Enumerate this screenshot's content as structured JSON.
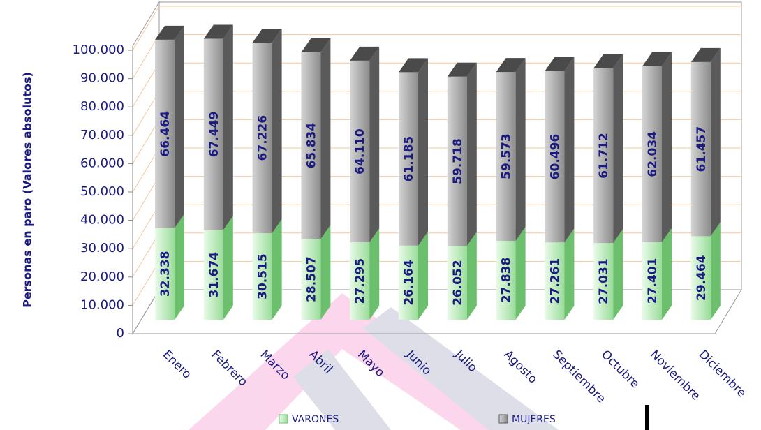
{
  "chart_data": {
    "type": "bar3d_stacked",
    "ylabel": "Personas en paro (Valores absolutos)",
    "categories": [
      "Enero",
      "Febrero",
      "Marzo",
      "Abril",
      "Mayo",
      "Junio",
      "Julio",
      "Agosto",
      "Septiembre",
      "Octubre",
      "Noviembre",
      "Diciembre"
    ],
    "series": [
      {
        "name": "VARONES",
        "color": "#b8ecb8",
        "values": [
          32338,
          31674,
          30515,
          28507,
          27295,
          26164,
          26052,
          27838,
          27261,
          27031,
          27401,
          29464
        ],
        "value_labels": [
          "32.338",
          "31.674",
          "30.515",
          "28.507",
          "27.295",
          "26.164",
          "26.052",
          "27.838",
          "27.261",
          "27.031",
          "27.401",
          "29.464"
        ]
      },
      {
        "name": "MUJERES",
        "color": "#a8a8a8",
        "values": [
          66464,
          67449,
          67226,
          65834,
          64110,
          61185,
          59718,
          59573,
          60496,
          61712,
          62034,
          61457
        ],
        "value_labels": [
          "66.464",
          "67.449",
          "67.226",
          "65.834",
          "64.110",
          "61.185",
          "59.718",
          "59.573",
          "60.496",
          "61.712",
          "62.034",
          "61.457"
        ]
      }
    ],
    "ylim": [
      0,
      100000
    ],
    "yticks": [
      0,
      {
        "value": 10000,
        "label": "10.000"
      },
      {
        "value": 20000,
        "label": "20.000"
      },
      {
        "value": 30000,
        "label": "30.000"
      },
      {
        "value": 40000,
        "label": "40.000"
      },
      {
        "value": 50000,
        "label": "50.000"
      },
      {
        "value": 60000,
        "label": "60.000"
      },
      {
        "value": 70000,
        "label": "70.000"
      },
      {
        "value": 80000,
        "label": "80.000"
      },
      {
        "value": 90000,
        "label": "90.000"
      },
      {
        "value": 100000,
        "label": "100.000"
      }
    ],
    "grid": true
  }
}
